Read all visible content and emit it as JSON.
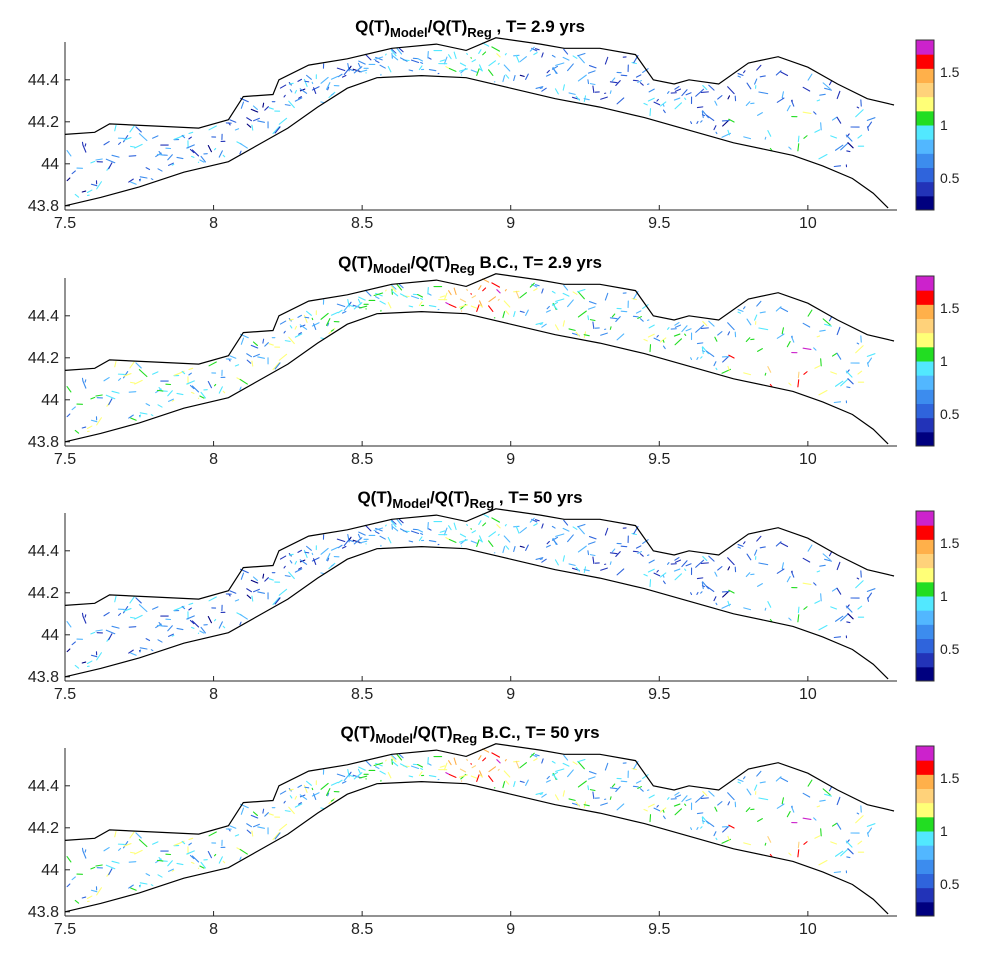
{
  "figure": {
    "panels": [
      {
        "title_main": "Q(T)",
        "title_sub1": "Model",
        "title_mid": "/Q(T)",
        "title_sub2": "Reg",
        "title_tail": " , T= 2.9 yrs",
        "variant": "model"
      },
      {
        "title_main": "Q(T)",
        "title_sub1": "Model",
        "title_mid": "/Q(T)",
        "title_sub2": "Reg",
        "title_tail": " B.C., T= 2.9 yrs",
        "variant": "bc"
      },
      {
        "title_main": "Q(T)",
        "title_sub1": "Model",
        "title_mid": "/Q(T)",
        "title_sub2": "Reg",
        "title_tail": " , T= 50 yrs",
        "variant": "model"
      },
      {
        "title_main": "Q(T)",
        "title_sub1": "Model",
        "title_mid": "/Q(T)",
        "title_sub2": "Reg",
        "title_tail": " B.C., T= 50 yrs",
        "variant": "bc"
      }
    ],
    "x_ticks": [
      "7.5",
      "8",
      "8.5",
      "9",
      "9.5",
      "10"
    ],
    "x_tick_values": [
      7.5,
      8,
      8.5,
      9,
      9.5,
      10
    ],
    "y_ticks": [
      "43.8",
      "44",
      "44.2",
      "44.4"
    ],
    "y_tick_values": [
      43.8,
      44.0,
      44.2,
      44.4
    ],
    "xlim": [
      7.5,
      10.3
    ],
    "ylim": [
      43.78,
      44.58
    ],
    "colorbar": {
      "labels": [
        "0.5",
        "1",
        "1.5"
      ],
      "label_values": [
        0.5,
        1.0,
        1.5
      ],
      "range": [
        0.2,
        1.8
      ],
      "colors": [
        "#00007f",
        "#2233b8",
        "#2f64dc",
        "#3c8cee",
        "#52b7ff",
        "#52e8ff",
        "#22dd22",
        "#ffff77",
        "#ffd27a",
        "#ffb04a",
        "#ff0000",
        "#cc22cc"
      ]
    }
  }
}
